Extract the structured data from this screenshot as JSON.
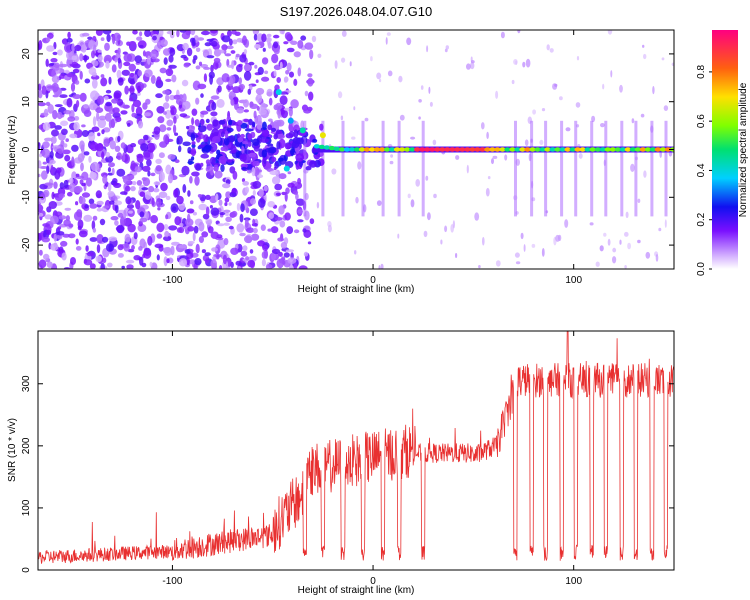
{
  "figure_title": "S197.2026.048.04.07.G10",
  "colors": {
    "series": "#e83030",
    "axis": "#000000",
    "background": "#ffffff"
  },
  "chart_data": [
    {
      "type": "heatmap",
      "xlabel": "Height of straight line (km)",
      "ylabel": "Frequency (Hz)",
      "xlim": [
        -167,
        150
      ],
      "ylim": [
        -25,
        25
      ],
      "xticks": [
        -100,
        0,
        100
      ],
      "yticks": [
        -20,
        -10,
        0,
        10,
        20
      ],
      "colorbar": {
        "label": "Normalized spectral amplitude",
        "range": [
          0,
          0.97
        ],
        "ticks": [
          0.0,
          0.2,
          0.4,
          0.6,
          0.8
        ]
      },
      "description_points": {
        "noise_region_km": [
          -167,
          -35
        ],
        "transition_km": [
          -35,
          -10
        ],
        "strong_line_km": [
          20,
          55
        ],
        "line_frequency_hz": 0,
        "line_amplitude": 0.9
      }
    },
    {
      "type": "line",
      "xlabel": "Height of straight line (km)",
      "ylabel": "SNR (10 * v/v)",
      "xlim": [
        -167,
        150
      ],
      "ylim": [
        0,
        385
      ],
      "xticks": [
        -100,
        0,
        100
      ],
      "yticks": [
        0,
        100,
        200,
        300
      ],
      "series": [
        {
          "name": "SNR",
          "segments": [
            {
              "x": [
                -167,
                -100
              ],
              "level": [
                18,
                30
              ]
            },
            {
              "x": [
                -100,
                -50
              ],
              "level": [
                30,
                55
              ]
            },
            {
              "x": [
                -35,
                20
              ],
              "level": [
                150,
                200
              ]
            },
            {
              "x": [
                20,
                65
              ],
              "level": [
                180,
                200
              ]
            },
            {
              "x": [
                70,
                150
              ],
              "level": [
                290,
                320
              ]
            }
          ],
          "dropouts_km": [
            -34,
            -25,
            -15,
            -5,
            5,
            13,
            25,
            71,
            79,
            86,
            94,
            101,
            109,
            116,
            124,
            131,
            139,
            146
          ],
          "peak": {
            "x": 97,
            "y": 385
          }
        }
      ]
    }
  ]
}
